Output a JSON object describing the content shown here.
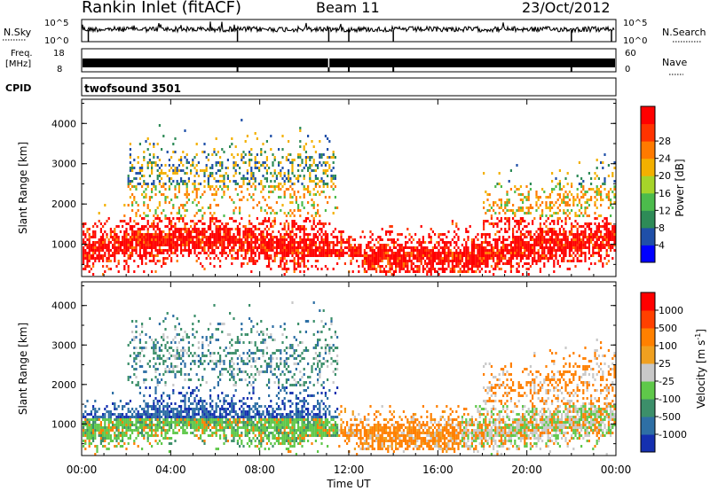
{
  "header": {
    "station": "Rankin Inlet (fitACF)",
    "beam": "Beam 11",
    "date": "23/Oct/2012"
  },
  "top_panels": {
    "nsky_label": "N.Sky",
    "nsky_ticks": [
      "10^5",
      "10^0"
    ],
    "nsearch_label": "N.Search",
    "nsearch_ticks": [
      "10^5",
      "10^0"
    ],
    "freq_label_1": "Freq.",
    "freq_label_2": "[MHz]",
    "freq_ticks": [
      "18",
      "8"
    ],
    "nave_label": "Nave",
    "nave_ticks": [
      "60",
      "0"
    ],
    "cpid_label": "CPID",
    "cpid_value": "twofsound 3501"
  },
  "chart_data": [
    {
      "type": "heatmap",
      "name": "power-panel",
      "ylabel": "Slant Range [km]",
      "xlabel": "",
      "yticks": [
        "1000",
        "2000",
        "3000",
        "4000"
      ],
      "ylim": [
        200,
        4600
      ],
      "xlim_hours": [
        0,
        24
      ],
      "colorbar": {
        "label": "Power [dB]",
        "ticks": [
          "4",
          "8",
          "12",
          "16",
          "20",
          "24",
          "28"
        ],
        "colors": [
          "#0000ff",
          "#1f4fa8",
          "#2e8b57",
          "#4cbb4c",
          "#a6d42a",
          "#f3b000",
          "#ff7a00",
          "#ff3300",
          "#ff0000"
        ]
      }
    },
    {
      "type": "heatmap",
      "name": "velocity-panel",
      "ylabel": "Slant Range [km]",
      "xlabel": "Time UT",
      "yticks": [
        "1000",
        "2000",
        "3000",
        "4000"
      ],
      "ylim": [
        200,
        4600
      ],
      "xlim_hours": [
        0,
        24
      ],
      "xticks": [
        "00:00",
        "04:00",
        "08:00",
        "12:00",
        "16:00",
        "20:00",
        "00:00"
      ],
      "colorbar": {
        "label": "Velocity [m s",
        "label_sup": "-1",
        "label_end": "]",
        "ticks": [
          "1000",
          "500",
          "100",
          "25",
          "-25",
          "-100",
          "-500",
          "-1000"
        ],
        "colors": [
          "#1530b0",
          "#2e6fa5",
          "#3c8f6a",
          "#5fc84a",
          "#c8c8c8",
          "#f0a020",
          "#ff8000",
          "#ff4000",
          "#ff0000"
        ]
      }
    }
  ]
}
